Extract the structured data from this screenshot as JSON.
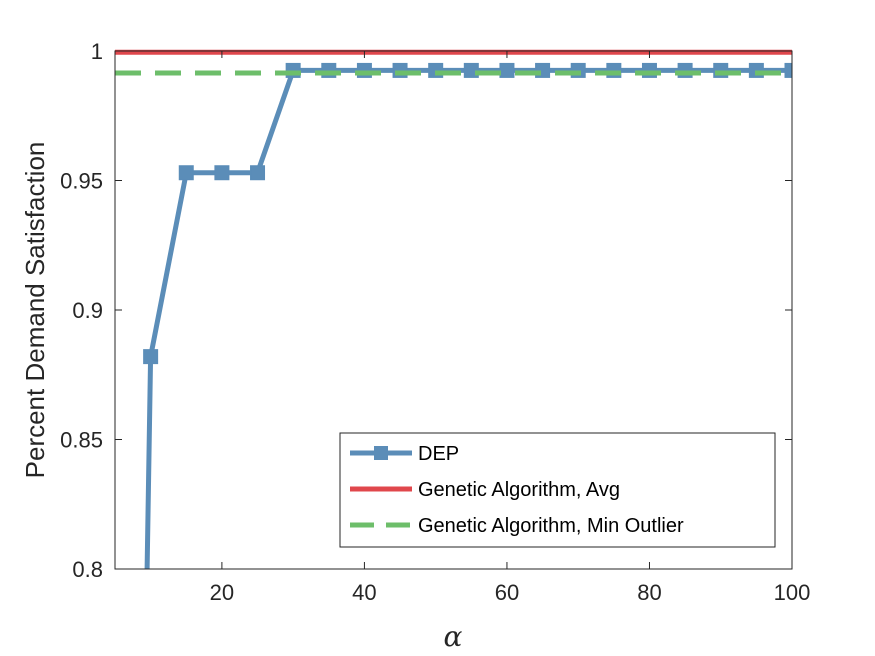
{
  "chart_data": {
    "type": "line",
    "xlabel": "α",
    "ylabel": "Percent Demand Satisfaction",
    "xlim": [
      5,
      100
    ],
    "ylim": [
      0.8,
      1.0
    ],
    "xticks": [
      20,
      40,
      60,
      80,
      100
    ],
    "yticks": [
      0.8,
      0.85,
      0.9,
      0.95,
      1
    ],
    "ytick_labels": [
      "0.8",
      "0.85",
      "0.9",
      "0.95",
      "1"
    ],
    "grid": false,
    "legend_placement": "bottom-right",
    "series": [
      {
        "name": "DEP",
        "color": "#5B8DB8",
        "style": "solid-square-markers",
        "x": [
          9.5,
          10,
          15,
          20,
          25,
          30,
          35,
          40,
          45,
          50,
          55,
          60,
          65,
          70,
          75,
          80,
          85,
          90,
          95,
          100
        ],
        "y": [
          0.8,
          0.882,
          0.953,
          0.953,
          0.953,
          0.9925,
          0.9925,
          0.9925,
          0.9925,
          0.9925,
          0.9925,
          0.9925,
          0.9925,
          0.9925,
          0.9925,
          0.9925,
          0.9925,
          0.9925,
          0.9925,
          0.9925
        ]
      },
      {
        "name": "Genetic Algorithm, Avg",
        "color": "#E0474C",
        "style": "solid",
        "x": [
          5,
          100
        ],
        "y": [
          0.9995,
          0.9995
        ]
      },
      {
        "name": "Genetic Algorithm, Min Outlier",
        "color": "#6DBE6A",
        "style": "dashed",
        "x": [
          5,
          100
        ],
        "y": [
          0.9915,
          0.9915
        ]
      }
    ]
  }
}
